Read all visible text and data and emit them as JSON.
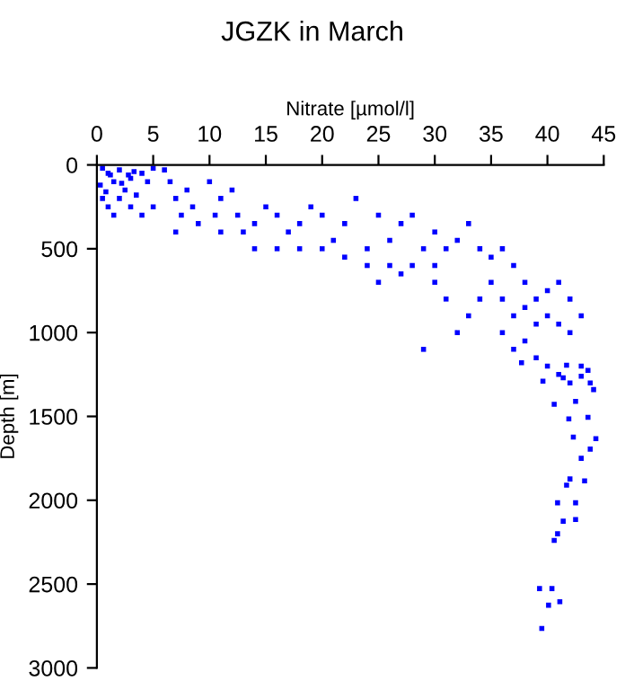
{
  "chart_data": {
    "type": "scatter",
    "title": "JGZK in March",
    "xlabel": "Nitrate [µmol/l]",
    "ylabel": "Depth [m]",
    "x": [
      0.5,
      1,
      1.5,
      2,
      2.5,
      3,
      0.5,
      1,
      2,
      3,
      4,
      4.5,
      5,
      3.5,
      1.5,
      4,
      5,
      0.3,
      0.8,
      1.2,
      2.2,
      2.8,
      3.3,
      6,
      6.5,
      7,
      7.5,
      8,
      8.5,
      9,
      7,
      10,
      10.5,
      11,
      12,
      12.5,
      13,
      14,
      15,
      16,
      17,
      18,
      19,
      20,
      21,
      22,
      23,
      24,
      25,
      18,
      14,
      11,
      16,
      20,
      22,
      24,
      26,
      27,
      28,
      29,
      30,
      31,
      32,
      33,
      34,
      35,
      36,
      37,
      38,
      39,
      40,
      41,
      42,
      35,
      36,
      37,
      38,
      39,
      40,
      41,
      42,
      43,
      34,
      33,
      30,
      29,
      32,
      36,
      37,
      38,
      39,
      40,
      41,
      42,
      43,
      25,
      28,
      27,
      26,
      30,
      31,
      39.5,
      40.1,
      40.4,
      39.3,
      41.1,
      40.6,
      40.9,
      41.4,
      42.5,
      40.9,
      42.5,
      42,
      43.3,
      41.7,
      43,
      43.8,
      44.3,
      42.3,
      41.9,
      43.6,
      40.6,
      42.5,
      44.1,
      43.8,
      39.6,
      41.4,
      43,
      41.7,
      43.6,
      37.7
    ],
    "values": [
      20,
      50,
      100,
      30,
      150,
      80,
      200,
      250,
      200,
      250,
      50,
      100,
      20,
      180,
      300,
      300,
      250,
      120,
      160,
      60,
      110,
      60,
      40,
      30,
      100,
      200,
      300,
      150,
      250,
      350,
      400,
      100,
      300,
      200,
      150,
      300,
      400,
      350,
      250,
      300,
      400,
      350,
      250,
      300,
      450,
      350,
      200,
      500,
      300,
      500,
      500,
      400,
      500,
      500,
      550,
      600,
      450,
      350,
      300,
      500,
      400,
      500,
      450,
      350,
      500,
      550,
      500,
      600,
      700,
      800,
      750,
      700,
      800,
      700,
      800,
      900,
      850,
      950,
      900,
      950,
      1000,
      900,
      800,
      900,
      700,
      1100,
      1000,
      1000,
      1100,
      1050,
      1150,
      1200,
      1250,
      1300,
      1200,
      700,
      600,
      650,
      600,
      600,
      800,
      2765,
      2626,
      2527,
      2527,
      2605,
      2240,
      2200,
      2125,
      2115,
      2015,
      2015,
      1873,
      1885,
      1910,
      1750,
      1695,
      1633,
      1623,
      1515,
      1505,
      1428,
      1410,
      1340,
      1300,
      1290,
      1270,
      1260,
      1195,
      1225,
      1180
    ],
    "color": "#0000ff",
    "marker": "square",
    "xlim": [
      0,
      45
    ],
    "xticks": [
      0,
      5,
      10,
      15,
      20,
      25,
      30,
      35,
      40,
      45
    ],
    "ylim": [
      3000,
      0
    ],
    "yticks": [
      0,
      500,
      1000,
      1500,
      2000,
      2500,
      3000
    ],
    "grid": false,
    "legend": false
  }
}
